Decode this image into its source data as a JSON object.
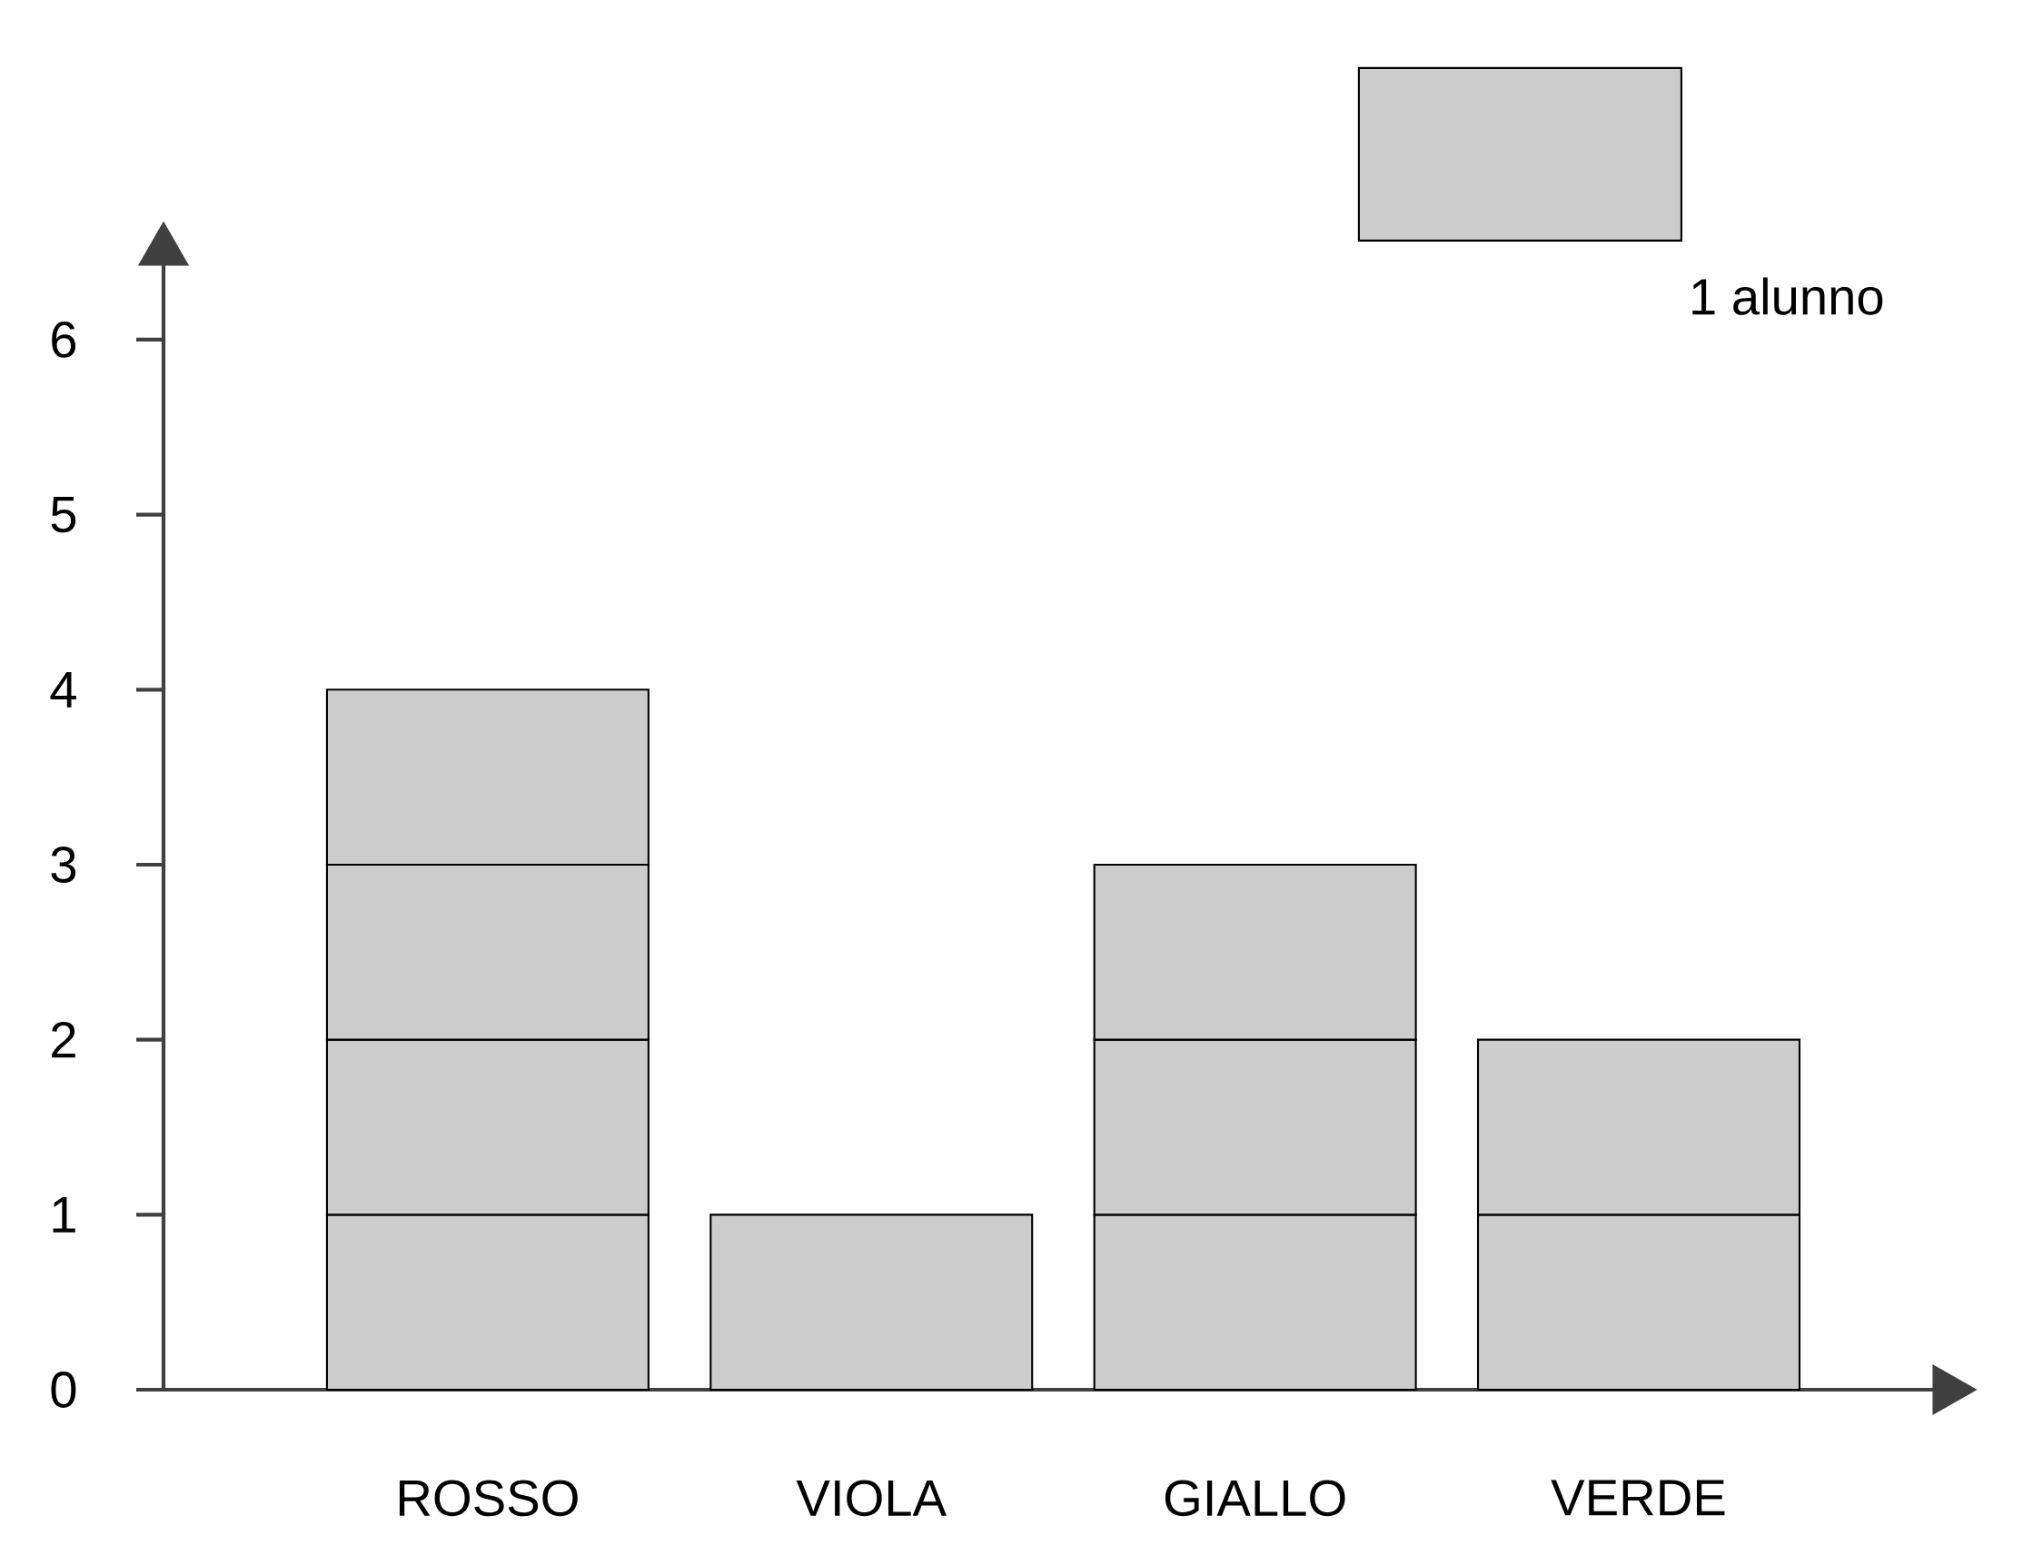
{
  "chart_data": {
    "type": "bar",
    "stacked": true,
    "categories": [
      "ROSSO",
      "VIOLA",
      "GIALLO",
      "VERDE"
    ],
    "series": [
      {
        "name": "1 alunno",
        "color": "#cccccc",
        "values": [
          1,
          1,
          1,
          1
        ]
      },
      {
        "color": "#cccccc",
        "values": [
          1,
          null,
          1,
          1
        ]
      },
      {
        "color": "#cccccc",
        "values": [
          1,
          null,
          1,
          null
        ]
      },
      {
        "color": "#cccccc",
        "values": [
          1,
          null,
          null,
          null
        ]
      }
    ],
    "ylim": [
      0,
      6.55
    ],
    "yticks": [
      0,
      1,
      2,
      3,
      4,
      5,
      6
    ],
    "legend": "top right"
  }
}
